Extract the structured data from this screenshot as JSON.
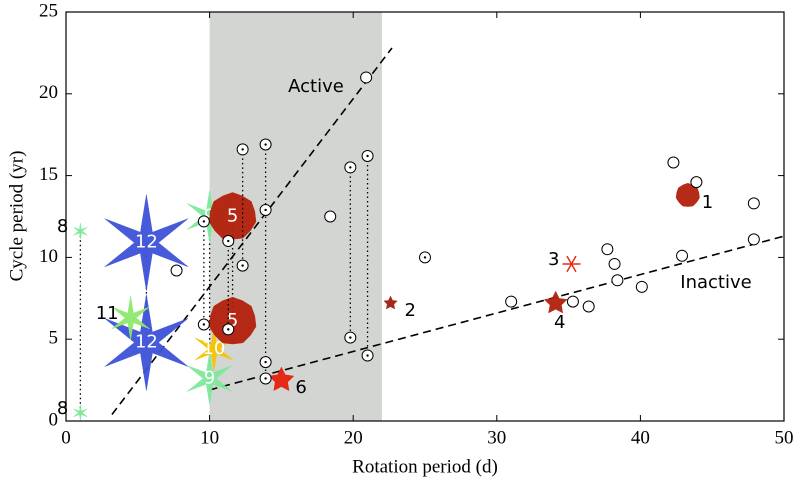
{
  "chart_data": {
    "type": "scatter",
    "xlabel": "Rotation period (d)",
    "ylabel": "Cycle period (yr)",
    "xlim": [
      0,
      50
    ],
    "ylim": [
      0,
      25
    ],
    "xticks": [
      0,
      10,
      20,
      30,
      40,
      50
    ],
    "yticks": [
      0,
      5,
      10,
      15,
      20,
      25
    ],
    "shade": [
      10,
      22
    ],
    "circles": {
      "x": [
        20.9,
        18.4,
        7.7,
        31.0,
        35.3,
        36.4,
        37.7,
        38.2,
        38.4,
        40.1,
        42.3,
        43.9,
        42.9,
        47.9,
        47.9
      ],
      "y": [
        21.0,
        12.5,
        9.2,
        7.3,
        7.3,
        7.0,
        10.5,
        9.6,
        8.6,
        8.2,
        15.8,
        14.6,
        10.1,
        13.3,
        11.1
      ]
    },
    "dotted_groups": [
      {
        "x": 12.3,
        "y": [
          16.6,
          9.5
        ]
      },
      {
        "x": 13.9,
        "y": [
          16.9,
          12.9,
          3.6,
          2.6
        ]
      },
      {
        "x": 19.8,
        "y": [
          15.5,
          5.1
        ]
      },
      {
        "x": 21.0,
        "y": [
          16.2,
          4.0
        ]
      },
      {
        "x": 9.6,
        "y": [
          12.2,
          5.9
        ]
      },
      {
        "x": 11.3,
        "y": [
          11.0,
          5.6
        ]
      },
      {
        "x": 25.0,
        "y": [
          10.0
        ]
      }
    ],
    "markers": [
      {
        "label": "8",
        "x": 1.0,
        "y": 11.6,
        "shape": "star6",
        "color": "#7fe89a",
        "size": 8,
        "label_pos": "left"
      },
      {
        "label": "8",
        "x": 1.0,
        "y": 0.5,
        "shape": "star6",
        "color": "#7fe89a",
        "size": 8,
        "label_pos": "left"
      },
      {
        "label": "12",
        "x": 5.6,
        "y": 10.9,
        "shape": "star6",
        "color": "#3d52d9",
        "size": 48,
        "label_pos": "center"
      },
      {
        "label": "12",
        "x": 5.6,
        "y": 4.8,
        "shape": "star6",
        "color": "#3d52d9",
        "size": 48,
        "label_pos": "center"
      },
      {
        "label": "11",
        "x": 4.5,
        "y": 6.3,
        "shape": "star6",
        "color": "#8ee86a",
        "size": 22,
        "label_pos": "left"
      },
      {
        "label": "9",
        "x": 10.0,
        "y": 12.5,
        "shape": "star6",
        "color": "#7fe89a",
        "size": 26,
        "label_pos": "center"
      },
      {
        "label": "9",
        "x": 10.0,
        "y": 2.6,
        "shape": "star6",
        "color": "#7fe89a",
        "size": 26,
        "label_pos": "center"
      },
      {
        "label": "10",
        "x": 10.3,
        "y": 4.4,
        "shape": "star6",
        "color": "#f5c400",
        "size": 22,
        "label_pos": "center"
      },
      {
        "label": "5",
        "x": 11.6,
        "y": 12.5,
        "shape": "heptagon",
        "color": "#b3200c",
        "size": 24,
        "label_pos": "center"
      },
      {
        "label": "5",
        "x": 11.6,
        "y": 6.1,
        "shape": "heptagon",
        "color": "#b3200c",
        "size": 24,
        "label_pos": "center"
      },
      {
        "label": "6",
        "x": 15.0,
        "y": 2.5,
        "shape": "star5",
        "color": "#e5200a",
        "size": 13,
        "label_pos": "right"
      },
      {
        "label": "2",
        "x": 22.6,
        "y": 7.2,
        "shape": "star5",
        "color": "#a01e10",
        "size": 7,
        "label_pos": "right"
      },
      {
        "label": "3",
        "x": 35.2,
        "y": 9.6,
        "shape": "asterisk",
        "color": "#e5200a",
        "size": 9,
        "label_pos": "left"
      },
      {
        "label": "4",
        "x": 34.1,
        "y": 7.2,
        "shape": "star5",
        "color": "#b3200c",
        "size": 12,
        "label_pos": "below"
      },
      {
        "label": "1",
        "x": 43.3,
        "y": 13.8,
        "shape": "heptagon",
        "color": "#b3200c",
        "size": 12,
        "label_pos": "right"
      }
    ],
    "fits": [
      {
        "name": "Active",
        "x": [
          3.2,
          22.7
        ],
        "y": [
          0.4,
          22.8
        ]
      },
      {
        "name": "Inactive",
        "x": [
          10.0,
          50.0
        ],
        "y": [
          1.9,
          11.3
        ]
      }
    ]
  }
}
